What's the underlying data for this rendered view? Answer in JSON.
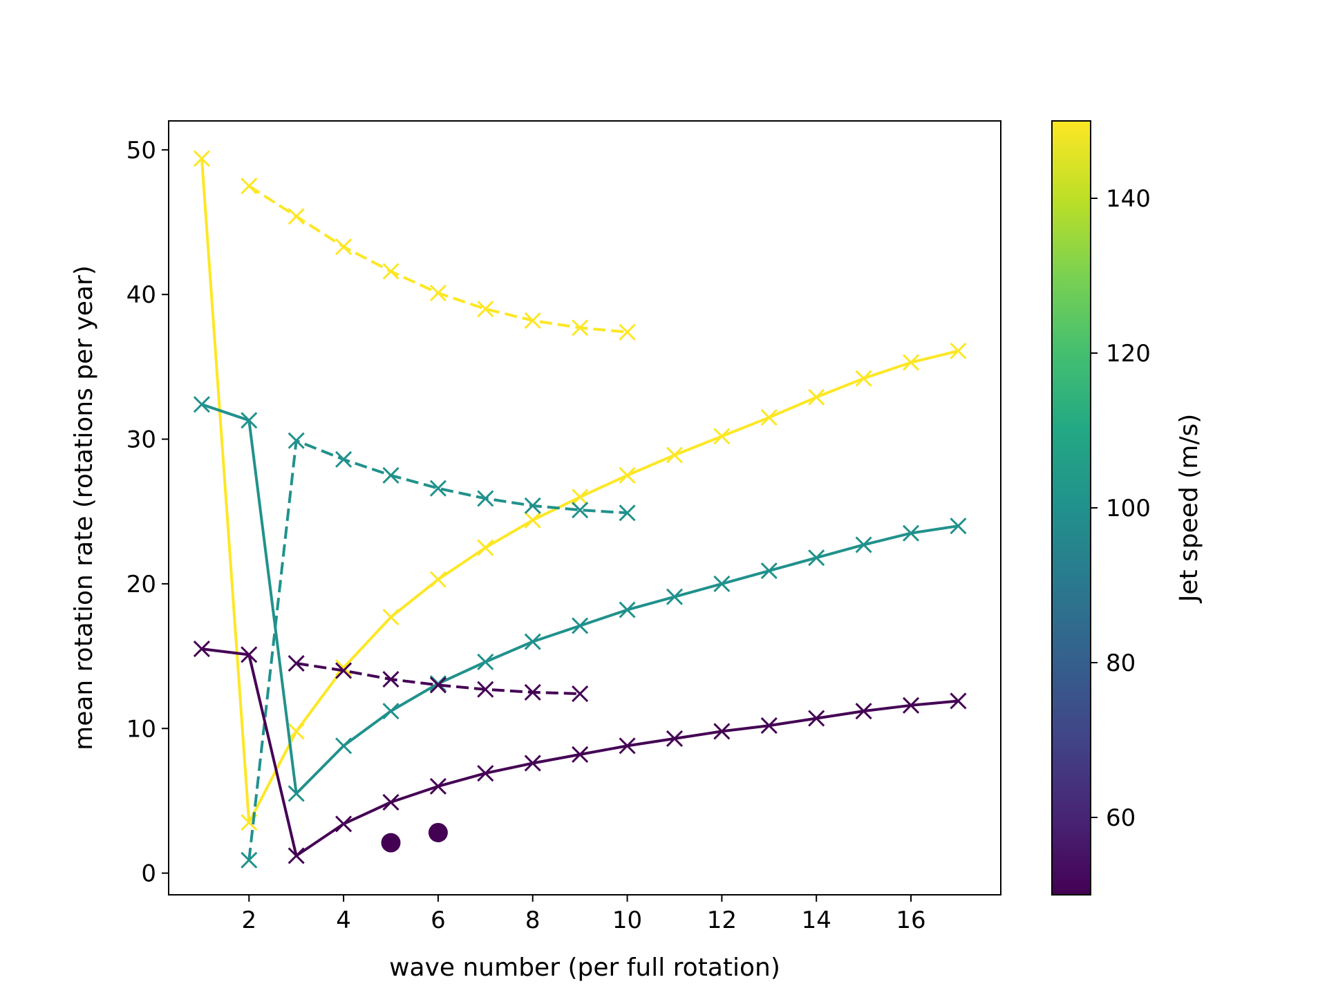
{
  "chart_data": {
    "type": "line",
    "title": "",
    "xlabel": "wave number (per full rotation)",
    "ylabel": "mean rotation rate (rotations per year)",
    "xlim": [
      0.3,
      17.9
    ],
    "ylim": [
      -1.5,
      52
    ],
    "xticks": [
      2,
      4,
      6,
      8,
      10,
      12,
      14,
      16
    ],
    "yticks": [
      0,
      10,
      20,
      30,
      40,
      50
    ],
    "grid": false,
    "legend": "none",
    "colorbar": {
      "label": "Jet speed (m/s)",
      "range": [
        50,
        150
      ],
      "ticks": [
        60,
        80,
        100,
        120,
        140
      ],
      "colormap": "viridis"
    },
    "series": [
      {
        "jet_speed": 150,
        "color": "#fde725",
        "style": "solid",
        "marker": "x",
        "x": [
          1,
          2,
          3,
          4,
          5,
          6,
          7,
          8,
          9,
          10,
          11,
          12,
          13,
          14,
          15,
          16,
          17
        ],
        "y": [
          49.4,
          3.5,
          9.8,
          14.2,
          17.7,
          20.3,
          22.5,
          24.4,
          26.0,
          27.5,
          28.9,
          30.2,
          31.5,
          32.9,
          34.2,
          35.3,
          36.1
        ]
      },
      {
        "jet_speed": 150,
        "color": "#fde725",
        "style": "dashed",
        "marker": "x",
        "x": [
          2,
          3,
          4,
          5,
          6,
          7,
          8,
          9,
          10
        ],
        "y": [
          47.5,
          45.4,
          43.3,
          41.6,
          40.1,
          39.0,
          38.2,
          37.7,
          37.4
        ]
      },
      {
        "jet_speed": 100,
        "color": "#21918c",
        "style": "solid",
        "marker": "x",
        "x": [
          1,
          2,
          3,
          4,
          5,
          6,
          7,
          8,
          9,
          10,
          11,
          12,
          13,
          14,
          15,
          16,
          17
        ],
        "y": [
          32.4,
          31.3,
          5.5,
          8.8,
          11.2,
          13.1,
          14.6,
          16.0,
          17.1,
          18.2,
          19.1,
          20.0,
          20.9,
          21.8,
          22.7,
          23.5,
          24.0
        ]
      },
      {
        "jet_speed": 100,
        "color": "#21918c",
        "style": "dashed",
        "marker": "x",
        "x": [
          2,
          3,
          4,
          5,
          6,
          7,
          8,
          9,
          10
        ],
        "y": [
          0.9,
          29.9,
          28.6,
          27.5,
          26.6,
          25.9,
          25.4,
          25.1,
          24.9
        ]
      },
      {
        "jet_speed": 50,
        "color": "#440154",
        "style": "solid",
        "marker": "x",
        "x": [
          1,
          2,
          3,
          4,
          5,
          6,
          7,
          8,
          9,
          10,
          11,
          12,
          13,
          14,
          15,
          16,
          17
        ],
        "y": [
          15.5,
          15.1,
          1.2,
          3.4,
          4.9,
          6.0,
          6.9,
          7.6,
          8.2,
          8.8,
          9.3,
          9.8,
          10.2,
          10.7,
          11.2,
          11.6,
          11.9
        ]
      },
      {
        "jet_speed": 50,
        "color": "#440154",
        "style": "dashed",
        "marker": "x",
        "x": [
          3,
          4,
          5,
          6,
          7,
          8,
          9
        ],
        "y": [
          14.5,
          14.0,
          13.4,
          13.0,
          12.7,
          12.5,
          12.4
        ]
      },
      {
        "jet_speed": 50,
        "color": "#440154",
        "style": "none",
        "marker": "o",
        "x": [
          5,
          6
        ],
        "y": [
          2.1,
          2.8
        ]
      }
    ]
  }
}
